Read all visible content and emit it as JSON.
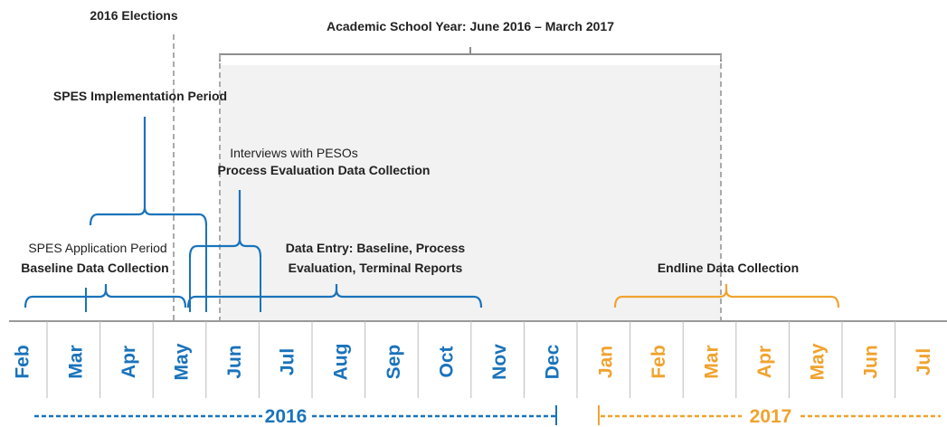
{
  "annotations": {
    "elections": "2016 Elections",
    "school_year": "Academic School Year: June 2016 – March 2017",
    "implementation": "SPES Implementation Period",
    "interviews": "Interviews with PESOs",
    "process": "Process Evaluation Data Collection",
    "application": "SPES Application Period",
    "baseline": "Baseline Data Collection",
    "data_entry_1": "Data Entry: Baseline, Process",
    "data_entry_2": "Evaluation, Terminal Reports",
    "endline": "Endline Data Collection"
  },
  "years": [
    {
      "label": "2016",
      "color": "#1a73bb",
      "months": [
        "Feb",
        "Mar",
        "Apr",
        "May",
        "Jun",
        "Jul",
        "Aug",
        "Sep",
        "Oct",
        "Nov",
        "Dec"
      ]
    },
    {
      "label": "2017",
      "color": "#f0a32f",
      "months": [
        "Jan",
        "Feb",
        "Mar",
        "Apr",
        "May",
        "Jun",
        "Jul"
      ]
    }
  ]
}
